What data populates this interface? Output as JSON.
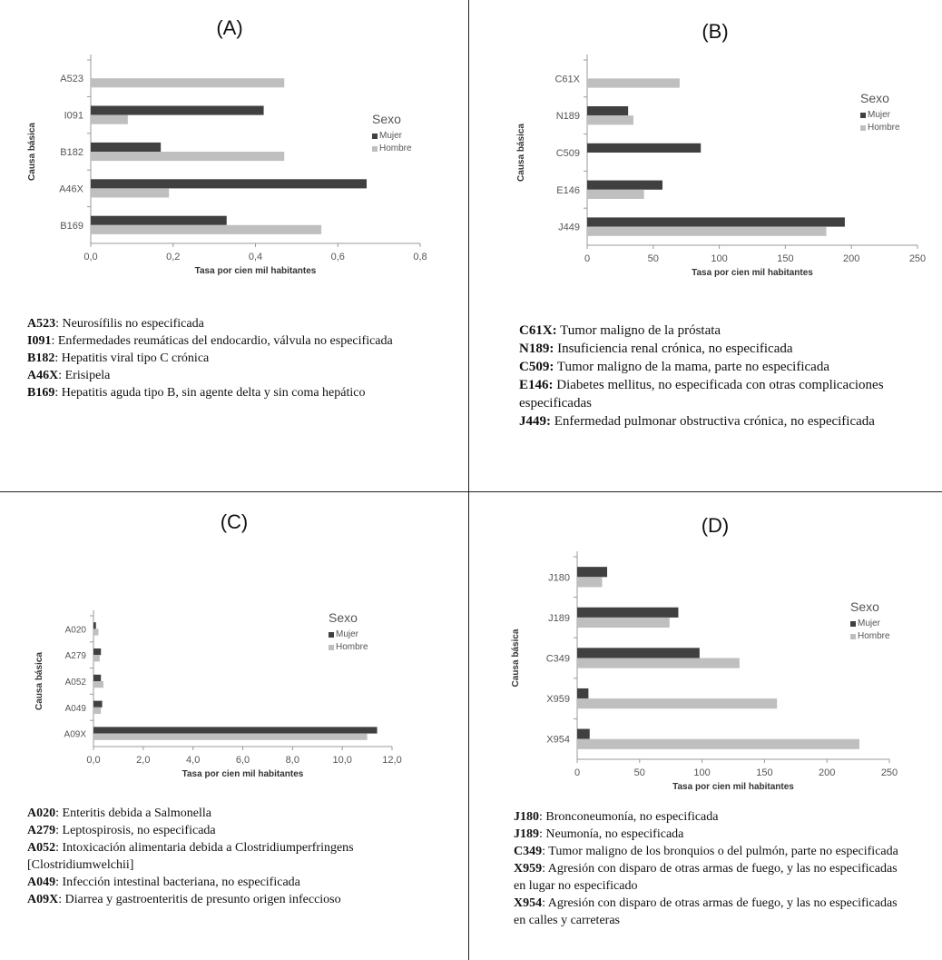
{
  "colors": {
    "mujer": "#404040",
    "hombre": "#bfbfbf",
    "axis": "#999999",
    "text": "#555555"
  },
  "chart_data": [
    {
      "id": "A",
      "type": "bar",
      "title": "(A)",
      "xlabel": "Tasa por cien mil habitantes",
      "ylabel": "Causa básica",
      "categories": [
        "A523",
        "I091",
        "B182",
        "A46X",
        "B169"
      ],
      "xlim": [
        0,
        0.8
      ],
      "ticks": [
        0.0,
        0.2,
        0.4,
        0.6,
        0.8
      ],
      "tick_labels": [
        "0,0",
        "0,2",
        "0,4",
        "0,6",
        "0,8"
      ],
      "legend": {
        "title": "Sexo",
        "items": [
          "Mujer",
          "Hombre"
        ]
      },
      "series": [
        {
          "name": "Mujer",
          "values": [
            0,
            0.42,
            0.17,
            0.67,
            0.33
          ]
        },
        {
          "name": "Hombre",
          "values": [
            0.47,
            0.09,
            0.47,
            0.19,
            0.56
          ]
        }
      ]
    },
    {
      "id": "B",
      "type": "bar",
      "title": "(B)",
      "xlabel": "Tasa por cien mil habitantes",
      "ylabel": "Causa básica",
      "categories": [
        "C61X",
        "N189",
        "C509",
        "E146",
        "J449"
      ],
      "xlim": [
        0,
        250
      ],
      "ticks": [
        0,
        50,
        100,
        150,
        200,
        250
      ],
      "tick_labels": [
        "0",
        "50",
        "100",
        "150",
        "200",
        "250"
      ],
      "legend": {
        "title": "Sexo",
        "items": [
          "Mujer",
          "Hombre"
        ]
      },
      "series": [
        {
          "name": "Mujer",
          "values": [
            0,
            31,
            86,
            57,
            195
          ]
        },
        {
          "name": "Hombre",
          "values": [
            70,
            35,
            0,
            43,
            181
          ]
        }
      ]
    },
    {
      "id": "C",
      "type": "bar",
      "title": "(C)",
      "xlabel": "Tasa por cien mil habitantes",
      "ylabel": "Causa básica",
      "categories": [
        "A020",
        "A279",
        "A052",
        "A049",
        "A09X"
      ],
      "xlim": [
        0,
        12
      ],
      "ticks": [
        0,
        2,
        4,
        6,
        8,
        10,
        12
      ],
      "tick_labels": [
        "0,0",
        "2,0",
        "4,0",
        "6,0",
        "8,0",
        "10,0",
        "12,0"
      ],
      "legend": {
        "title": "Sexo",
        "items": [
          "Mujer",
          "Hombre"
        ]
      },
      "series": [
        {
          "name": "Mujer",
          "values": [
            0.1,
            0.3,
            0.3,
            0.35,
            11.4
          ]
        },
        {
          "name": "Hombre",
          "values": [
            0.2,
            0.25,
            0.4,
            0.3,
            11.0
          ]
        }
      ]
    },
    {
      "id": "D",
      "type": "bar",
      "title": "(D)",
      "xlabel": "Tasa por cien mil habitantes",
      "ylabel": "Causa básica",
      "categories": [
        "J180",
        "J189",
        "C349",
        "X959",
        "X954"
      ],
      "xlim": [
        0,
        250
      ],
      "ticks": [
        0,
        50,
        100,
        150,
        200,
        250
      ],
      "tick_labels": [
        "0",
        "50",
        "100",
        "150",
        "200",
        "250"
      ],
      "legend": {
        "title": "Sexo",
        "items": [
          "Mujer",
          "Hombre"
        ]
      },
      "series": [
        {
          "name": "Mujer",
          "values": [
            24,
            81,
            98,
            9,
            10
          ]
        },
        {
          "name": "Hombre",
          "values": [
            20,
            74,
            130,
            160,
            226
          ]
        }
      ]
    }
  ],
  "notes": {
    "A": [
      {
        "code": "A523",
        "text": ": Neurosífilis no especificada"
      },
      {
        "code": "I091",
        "text": ": Enfermedades reumáticas del endocardio, válvula no especificada"
      },
      {
        "code": "B182",
        "text": ": Hepatitis viral tipo C crónica"
      },
      {
        "code": "A46X",
        "text": ": Erisipela"
      },
      {
        "code": "B169",
        "text": ": Hepatitis aguda tipo B, sin agente delta y sin coma hepático"
      }
    ],
    "B": [
      {
        "code": "C61X:",
        "text": " Tumor maligno de la próstata"
      },
      {
        "code": "N189:",
        "text": " Insuficiencia renal crónica, no especificada"
      },
      {
        "code": "C509:",
        "text": " Tumor maligno de la mama, parte no especificada"
      },
      {
        "code": "E146:",
        "text": " Diabetes mellitus, no especificada con otras complicaciones especificadas"
      },
      {
        "code": "J449:",
        "text": " Enfermedad pulmonar obstructiva crónica, no especificada"
      }
    ],
    "C": [
      {
        "code": "A020",
        "text": ": Enteritis debida a Salmonella"
      },
      {
        "code": "A279",
        "text": ": Leptospirosis, no especificada"
      },
      {
        "code": "A052",
        "text": ": Intoxicación alimentaria debida a Clostridiumperfringens [Clostridiumwelchii]"
      },
      {
        "code": "A049",
        "text": ": Infección intestinal bacteriana, no especificada"
      },
      {
        "code": "A09X",
        "text": ": Diarrea y gastroenteritis de presunto origen infeccioso"
      }
    ],
    "D": [
      {
        "code": "J180",
        "text": ": Bronconeumonía, no especificada"
      },
      {
        "code": "J189",
        "text": ": Neumonía, no especificada"
      },
      {
        "code": "C349",
        "text": ": Tumor maligno de los bronquios o del pulmón, parte no especificada"
      },
      {
        "code": "X959",
        "text": ": Agresión con disparo de otras armas de fuego, y las no especificadas en lugar no especificado"
      },
      {
        "code": "X954",
        "text": ": Agresión con disparo de otras armas de fuego, y las no especificadas en calles y carreteras"
      }
    ]
  }
}
